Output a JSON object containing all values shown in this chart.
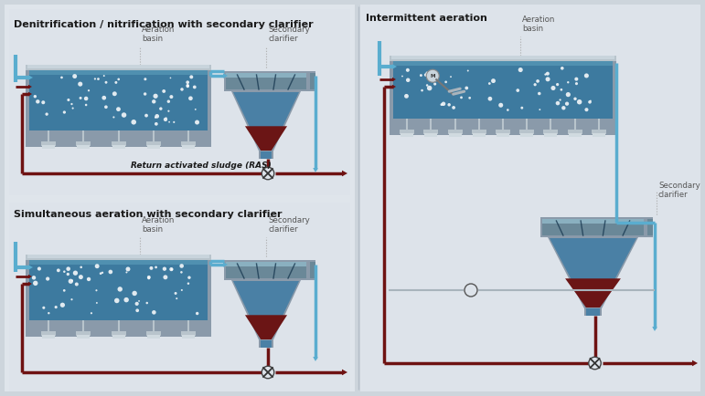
{
  "bg_outer": "#cdd5dc",
  "bg_left_panel": "#dde3ea",
  "bg_right_panel": "#dde3ea",
  "basin_blue_main": "#3d7a9f",
  "basin_blue_light": "#5090b0",
  "basin_frame_gray": "#8a9aaa",
  "basin_frame_light": "#b8c4cc",
  "clarifier_blue": "#4a80a5",
  "clarifier_dark": "#2a5070",
  "sludge_brown": "#6b1515",
  "pipe_blue": "#5aadcf",
  "pipe_dark": "#6e1212",
  "pipe_gray": "#a8b4bc",
  "text_dark": "#1a1a1a",
  "text_label": "#555555",
  "bubble_white": "#ffffff",
  "diffuser_gray": "#b8c4cc",
  "title1": "Denitrification / nitrification with secondary clarifier",
  "title2": "Intermittent aeration",
  "title3": "Simultaneous aeration with secondary clarifier",
  "lbl_aeration": "Aeration\nbasin",
  "lbl_secondary": "Secondary\nclarifier",
  "lbl_ras": "Return activated sludge (RAS)"
}
